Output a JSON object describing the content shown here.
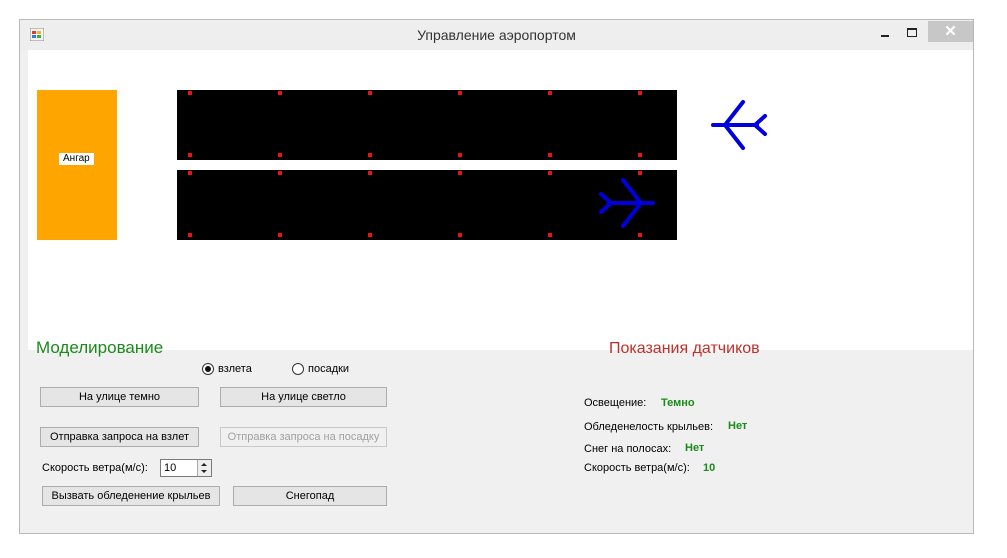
{
  "window": {
    "title": "Управление аэропортом"
  },
  "scene": {
    "hangar_label": "Ангар",
    "colors": {
      "hangar": "#ffa500",
      "runway": "#000000",
      "runway_light": "#ee1111",
      "plane": "#0000dd"
    },
    "icons": [
      "app-icon",
      "plane-icon"
    ]
  },
  "simulation": {
    "title": "Моделирование",
    "modes": [
      {
        "label": "взлета",
        "checked": true
      },
      {
        "label": "посадки",
        "checked": false
      }
    ],
    "buttons": {
      "dark": "На улице темно",
      "light": "На улице светло",
      "takeoff_request": "Отправка запроса на взлет",
      "landing_request": "Отправка запроса на посадку",
      "icing": "Вызвать обледенение крыльев",
      "snowfall": "Снегопад"
    },
    "wind_label": "Скорость ветра(м/с):",
    "wind_value": "10"
  },
  "sensors": {
    "title": "Показания датчиков",
    "items": [
      {
        "label": "Освещение:",
        "value": "Темно"
      },
      {
        "label": "Обледенелость крыльев:",
        "value": "Нет"
      },
      {
        "label": "Снег на полосах:",
        "value": "Нет"
      },
      {
        "label": "Скорость ветра(м/с):",
        "value": "10"
      }
    ]
  }
}
